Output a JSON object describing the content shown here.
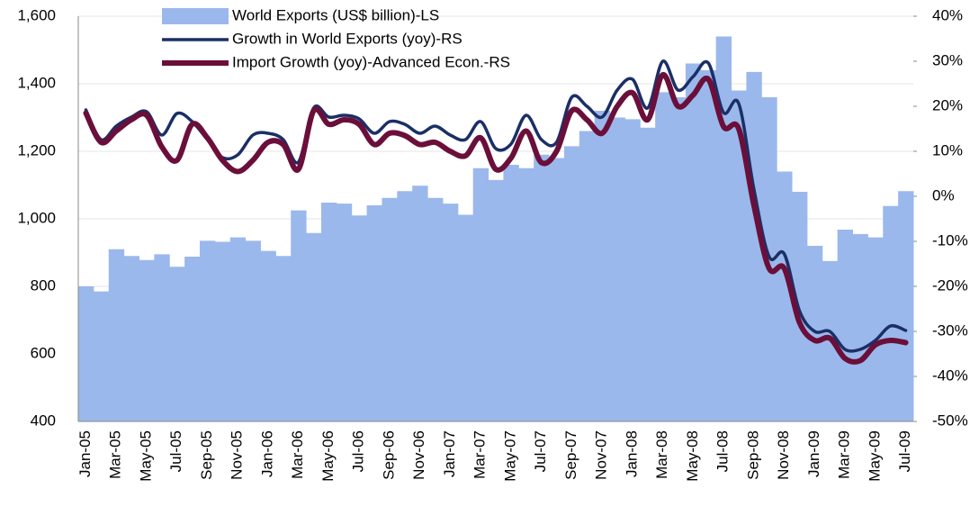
{
  "chart_data": {
    "type": "bar-line",
    "categories": [
      "Jan-05",
      null,
      "Mar-05",
      null,
      "May-05",
      null,
      "Jul-05",
      null,
      "Sep-05",
      null,
      "Nov-05",
      null,
      "Jan-06",
      null,
      "Mar-06",
      null,
      "May-06",
      null,
      "Jul-06",
      null,
      "Sep-06",
      null,
      "Nov-06",
      null,
      "Jan-07",
      null,
      "Mar-07",
      null,
      "May-07",
      null,
      "Jul-07",
      null,
      "Sep-07",
      null,
      "Nov-07",
      null,
      "Jan-08",
      null,
      "Mar-08",
      null,
      "May-08",
      null,
      "Jul-08",
      null,
      "Sep-08",
      null,
      "Nov-08",
      null,
      "Jan-09",
      null,
      "Mar-09",
      null,
      "May-09",
      null,
      "Jul-09"
    ],
    "series": [
      {
        "name": "World Exports (US$ billion)-LS",
        "type": "bar",
        "axis": "y",
        "color": "#9bb8ec",
        "values": [
          800,
          785,
          910,
          890,
          878,
          895,
          858,
          888,
          935,
          932,
          945,
          935,
          905,
          890,
          1025,
          958,
          1048,
          1045,
          1010,
          1040,
          1062,
          1082,
          1098,
          1062,
          1045,
          1012,
          1150,
          1115,
          1160,
          1150,
          1190,
          1180,
          1215,
          1260,
          1320,
          1300,
          1295,
          1270,
          1375,
          1360,
          1460,
          1440,
          1540,
          1380,
          1435,
          1360,
          1140,
          1080,
          920,
          875,
          968,
          955,
          945,
          1038,
          1082
        ]
      },
      {
        "name": "Growth in World Exports (yoy)-RS",
        "type": "line",
        "axis": "y2",
        "color": "#1b2f66",
        "values": [
          19.2,
          12.6,
          15.6,
          17.6,
          18.8,
          13.6,
          18.4,
          16.6,
          12.6,
          8.6,
          9.2,
          13.6,
          14,
          12.6,
          7.6,
          19.6,
          17.6,
          18,
          17.2,
          14,
          16.6,
          16,
          14,
          15.6,
          13.6,
          12.6,
          16.6,
          10.6,
          11.6,
          18,
          12.6,
          12,
          22,
          20,
          17.6,
          23.6,
          26,
          19.6,
          30,
          23.6,
          26.6,
          29.6,
          18.6,
          20.6,
          1.6,
          -13.4,
          -12.8,
          -25.4,
          -30,
          -30,
          -34,
          -34,
          -32,
          -28.8,
          -29.8
        ]
      },
      {
        "name": "Import Growth (yoy)-Advanced Econ.-RS",
        "type": "line",
        "axis": "y2",
        "color": "#6b0f3a",
        "values": [
          18.5,
          12,
          14.5,
          17,
          18,
          11,
          8,
          16,
          13,
          8,
          5.5,
          8,
          12,
          11.5,
          6,
          19,
          16,
          17,
          16,
          11.5,
          14,
          13.5,
          11.5,
          12,
          10,
          9,
          13,
          6,
          8.5,
          14.5,
          7.5,
          10,
          19,
          17,
          14,
          20,
          23,
          17,
          27,
          20,
          22.5,
          26,
          15.5,
          15,
          -2,
          -16,
          -16,
          -28,
          -32,
          -31.5,
          -36,
          -36.5,
          -33,
          -32,
          -32.5
        ]
      }
    ],
    "ylim": [
      400,
      1600
    ],
    "yticks": [
      400,
      600,
      800,
      {
        "value": 1000,
        "label": "1,000"
      },
      {
        "value": 1200,
        "label": "1,200"
      },
      {
        "value": 1400,
        "label": "1,400"
      },
      {
        "value": 1600,
        "label": "1,600"
      }
    ],
    "y2lim": [
      -50,
      40
    ],
    "y2ticks": [
      {
        "value": -50,
        "label": "-50%"
      },
      {
        "value": -40,
        "label": "-40%"
      },
      {
        "value": -30,
        "label": "-30%"
      },
      {
        "value": -20,
        "label": "-20%"
      },
      {
        "value": -10,
        "label": "-10%"
      },
      {
        "value": 0,
        "label": "0%"
      },
      {
        "value": 10,
        "label": "10%"
      },
      {
        "value": 20,
        "label": "20%"
      },
      {
        "value": 30,
        "label": "30%"
      },
      {
        "value": 40,
        "label": "40%"
      }
    ],
    "grid": true,
    "legend": "upper center"
  }
}
